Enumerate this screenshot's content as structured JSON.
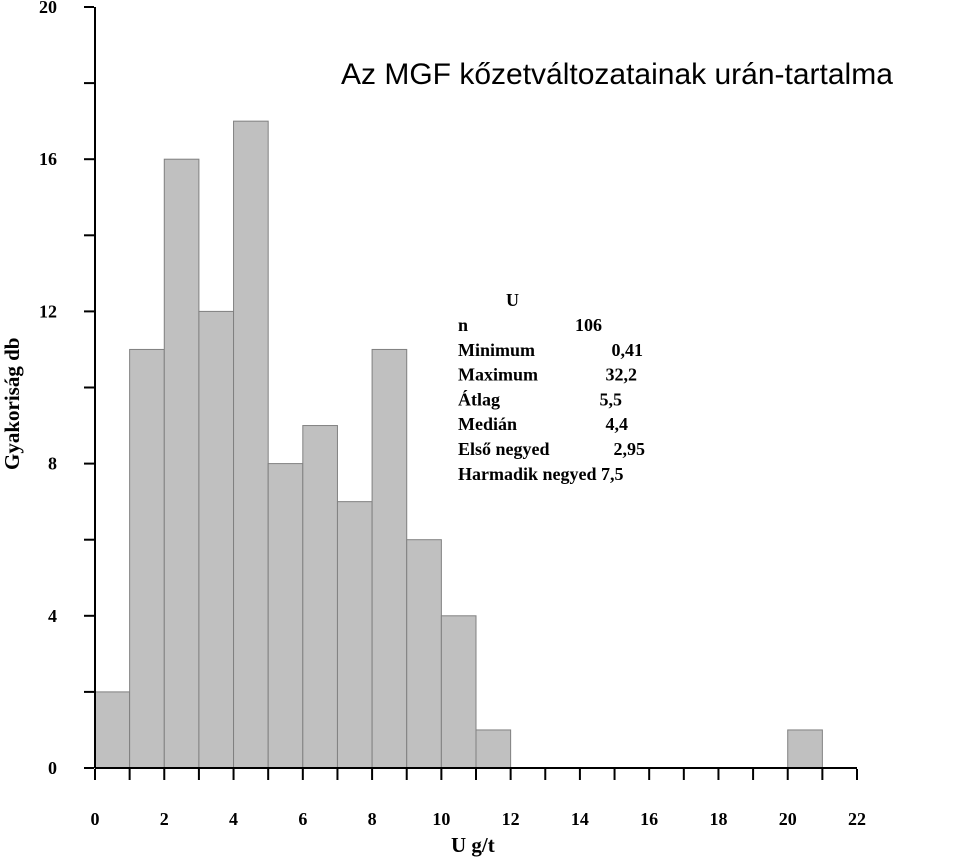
{
  "chart_data": {
    "type": "bar",
    "title": "Az MGF kőzetváltozatainak urán-tartalma",
    "xlabel": "U  g/t",
    "ylabel": "Gyakoriság  db",
    "xlim": [
      0,
      22
    ],
    "ylim": [
      0,
      20
    ],
    "bin_width": 1,
    "bins": [
      {
        "x0": 0,
        "x1": 1,
        "value": 2
      },
      {
        "x0": 1,
        "x1": 2,
        "value": 11
      },
      {
        "x0": 2,
        "x1": 3,
        "value": 16
      },
      {
        "x0": 3,
        "x1": 4,
        "value": 12
      },
      {
        "x0": 4,
        "x1": 5,
        "value": 17
      },
      {
        "x0": 5,
        "x1": 6,
        "value": 8
      },
      {
        "x0": 6,
        "x1": 7,
        "value": 9
      },
      {
        "x0": 7,
        "x1": 8,
        "value": 7
      },
      {
        "x0": 8,
        "x1": 9,
        "value": 11
      },
      {
        "x0": 9,
        "x1": 10,
        "value": 6
      },
      {
        "x0": 10,
        "x1": 11,
        "value": 4
      },
      {
        "x0": 11,
        "x1": 12,
        "value": 1
      },
      {
        "x0": 20,
        "x1": 21,
        "value": 1
      }
    ],
    "x_ticks": [
      "0",
      "2",
      "4",
      "6",
      "8",
      "10",
      "12",
      "14",
      "16",
      "18",
      "20",
      "22"
    ],
    "y_ticks": [
      "0",
      "4",
      "8",
      "12",
      "16",
      "20"
    ],
    "grid": false,
    "stats": {
      "header": "U",
      "rows": [
        {
          "label": "n",
          "value": "106"
        },
        {
          "label": "Minimum",
          "value": "0,41"
        },
        {
          "label": "Maximum",
          "value": "32,2"
        },
        {
          "label": "Átlag",
          "value": "5,5"
        },
        {
          "label": "Medián",
          "value": "4,4"
        },
        {
          "label": "Első negyed",
          "value": "2,95"
        },
        {
          "label": "Harmadik negyed",
          "value": "7,5"
        }
      ]
    }
  },
  "colors": {
    "bar_fill": "#c0c0c0",
    "bar_stroke": "#808080",
    "axis": "#000000"
  }
}
